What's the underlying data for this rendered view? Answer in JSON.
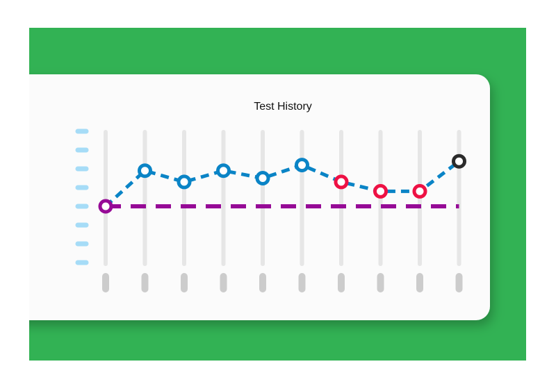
{
  "chart_data": {
    "type": "line",
    "title": "Test History",
    "categories": [
      null,
      null,
      null,
      null,
      null,
      null,
      null,
      null,
      null,
      null
    ],
    "values": [
      3,
      4.9,
      4.3,
      4.9,
      4.5,
      5.2,
      4.3,
      3.8,
      3.8,
      5.4
    ],
    "color": "#0a84c6",
    "point_colors": [
      "#960a96",
      "#0a84c6",
      "#0a84c6",
      "#0a84c6",
      "#0a84c6",
      "#0a84c6",
      "#ee1144",
      "#ee1144",
      "#ee1144",
      "#2b2b2b"
    ],
    "reference": {
      "value": 3,
      "color": "#960a96"
    },
    "ylim": [
      0,
      7
    ],
    "yticks": [
      0,
      1,
      2,
      3,
      4,
      5,
      6,
      7
    ],
    "grid": true
  }
}
